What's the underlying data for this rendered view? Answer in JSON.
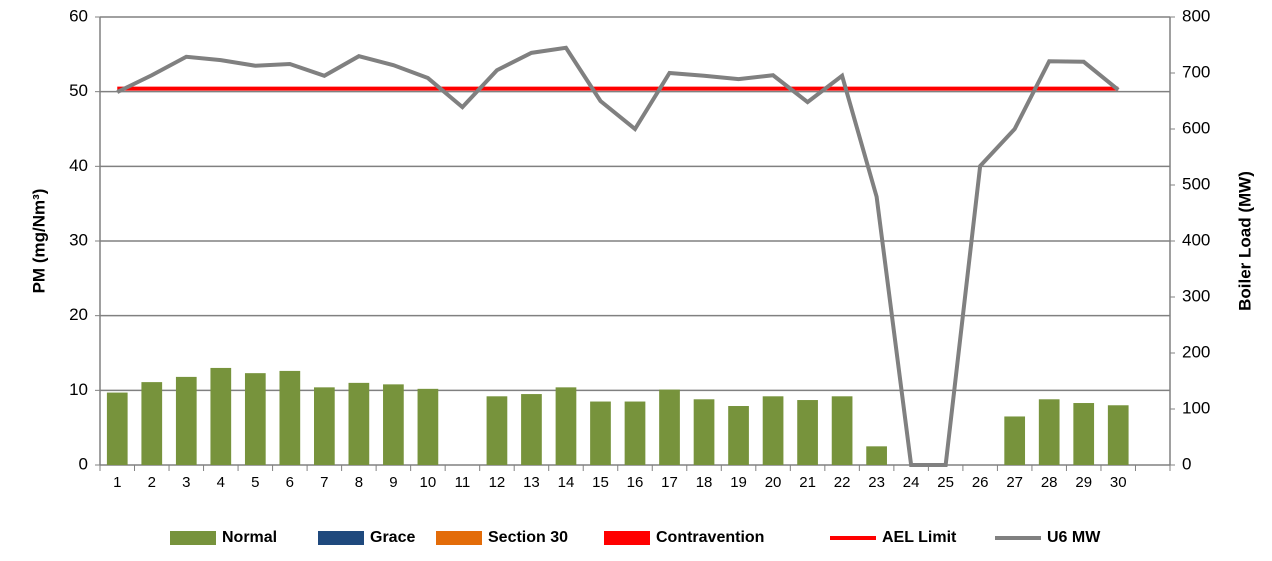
{
  "chart_data": {
    "type": "bar",
    "ylabel": "PM (mg/Nm³)",
    "y2label": "Boiler Load (MW)",
    "categories": [
      "1",
      "2",
      "3",
      "4",
      "5",
      "6",
      "7",
      "8",
      "9",
      "10",
      "11",
      "12",
      "13",
      "14",
      "15",
      "16",
      "17",
      "18",
      "19",
      "20",
      "21",
      "22",
      "23",
      "24",
      "25",
      "26",
      "27",
      "28",
      "29",
      "30",
      null
    ],
    "ylim": [
      0,
      60
    ],
    "yticks": [
      0,
      10,
      20,
      30,
      40,
      50,
      60
    ],
    "y2lim": [
      0,
      800
    ],
    "y2ticks": [
      0,
      100,
      200,
      300,
      400,
      500,
      600,
      700,
      800
    ],
    "grid": true,
    "legend": "bottom",
    "series": [
      {
        "name": "Normal",
        "type": "bar",
        "color": "#77933c",
        "values": [
          9.7,
          11.1,
          11.8,
          13,
          12.3,
          12.6,
          10.4,
          11,
          10.8,
          10.2,
          null,
          9.2,
          9.5,
          10.4,
          8.5,
          8.5,
          10.1,
          8.8,
          7.9,
          9.2,
          8.7,
          9.2,
          2.5,
          null,
          null,
          null,
          6.5,
          8.8,
          8.3,
          8.0,
          null
        ]
      },
      {
        "name": "Grace",
        "type": "bar",
        "color": "#1f497d",
        "values": [
          null,
          null,
          null,
          null,
          null,
          null,
          null,
          null,
          null,
          null,
          null,
          null,
          null,
          null,
          null,
          null,
          null,
          null,
          null,
          null,
          null,
          null,
          null,
          null,
          null,
          null,
          null,
          null,
          null,
          null,
          null
        ]
      },
      {
        "name": "Section 30",
        "type": "bar",
        "color": "#e36c09",
        "values": [
          null,
          null,
          null,
          null,
          null,
          null,
          null,
          null,
          null,
          null,
          null,
          null,
          null,
          null,
          null,
          null,
          null,
          null,
          null,
          null,
          null,
          null,
          null,
          null,
          null,
          null,
          null,
          null,
          null,
          null,
          null
        ]
      },
      {
        "name": "Contravention",
        "type": "bar",
        "color": "#ff0000",
        "values": [
          null,
          null,
          null,
          null,
          null,
          null,
          null,
          null,
          null,
          null,
          null,
          null,
          null,
          null,
          null,
          null,
          null,
          null,
          null,
          null,
          null,
          null,
          null,
          null,
          null,
          null,
          null,
          null,
          null,
          null,
          null
        ]
      },
      {
        "name": "AEL Limit",
        "type": "line",
        "color": "#ff0000",
        "values": [
          50.4,
          50.4,
          50.4,
          50.4,
          50.4,
          50.4,
          50.4,
          50.4,
          50.4,
          50.4,
          50.4,
          50.4,
          50.4,
          50.4,
          50.4,
          50.4,
          50.4,
          50.4,
          50.4,
          50.4,
          50.4,
          50.4,
          50.4,
          50.4,
          50.4,
          50.4,
          50.4,
          50.4,
          50.4,
          50.4,
          null
        ]
      },
      {
        "name": "U6 MW",
        "type": "line",
        "axis": "y2",
        "color": "#808080",
        "values": [
          666,
          696,
          729,
          723,
          713,
          716,
          695,
          730,
          714,
          691,
          639,
          705,
          736,
          745,
          650,
          600,
          700,
          695,
          689,
          696,
          648,
          695,
          479,
          0,
          0,
          534,
          600,
          721,
          720,
          670,
          null
        ]
      }
    ]
  }
}
